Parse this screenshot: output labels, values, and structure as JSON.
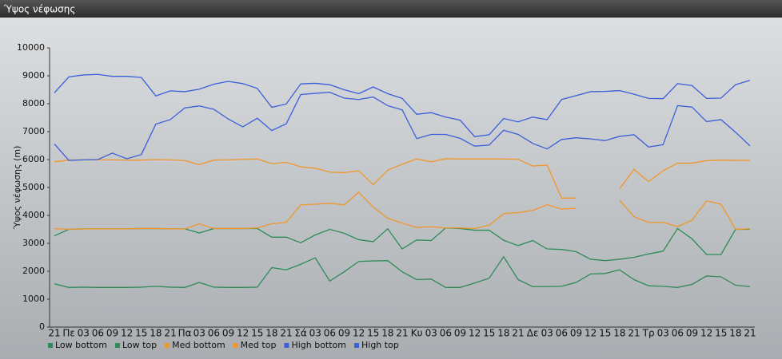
{
  "chart_data": {
    "type": "line",
    "title": "Ύψος νέφωσης",
    "y_label": "Ύψος νέφωσης (m)",
    "categories": [
      "21",
      "Πε",
      "03",
      "06",
      "09",
      "12",
      "15",
      "18",
      "21",
      "Πα",
      "03",
      "06",
      "09",
      "12",
      "15",
      "18",
      "21",
      "Σά",
      "03",
      "06",
      "09",
      "12",
      "15",
      "18",
      "21",
      "Κυ",
      "03",
      "06",
      "09",
      "12",
      "15",
      "18",
      "21",
      "Δε",
      "03",
      "06",
      "09",
      "12",
      "15",
      "18",
      "21",
      "Τρ",
      "03",
      "06",
      "09",
      "12",
      "15",
      "18",
      "21"
    ],
    "ylim": [
      0,
      10000
    ],
    "yticks": [
      0,
      1000,
      2000,
      3000,
      4000,
      5000,
      6000,
      7000,
      8000,
      9000,
      10000
    ],
    "grid": false,
    "series": [
      {
        "name": "Low bottom",
        "color": "#2e8b57",
        "values": [
          1550,
          1420,
          1430,
          1420,
          1420,
          1420,
          1430,
          1460,
          1430,
          1420,
          1600,
          1430,
          1420,
          1420,
          1430,
          2130,
          2050,
          2250,
          2480,
          1650,
          1980,
          2350,
          2370,
          2380,
          1980,
          1700,
          1720,
          1420,
          1420,
          1580,
          1750,
          2520,
          1700,
          1450,
          1450,
          1460,
          1600,
          1900,
          1920,
          2050,
          1700,
          1480,
          1460,
          1420,
          1530,
          1830,
          1800,
          1500,
          1450
        ]
      },
      {
        "name": "Low top",
        "color": "#2e8b57",
        "values": [
          3270,
          3500,
          3520,
          3520,
          3520,
          3520,
          3530,
          3530,
          3520,
          3520,
          3370,
          3530,
          3530,
          3530,
          3530,
          3220,
          3220,
          3020,
          3300,
          3500,
          3360,
          3130,
          3060,
          3520,
          2800,
          3120,
          3100,
          3550,
          3530,
          3470,
          3470,
          3110,
          2920,
          3100,
          2800,
          2780,
          2700,
          2430,
          2380,
          2430,
          2500,
          2620,
          2720,
          3530,
          3160,
          2600,
          2600,
          3500,
          3500
        ]
      },
      {
        "name": "Med bottom",
        "color": "#f0962a",
        "values": [
          3530,
          3500,
          3520,
          3520,
          3520,
          3520,
          3530,
          3530,
          3520,
          3520,
          3700,
          3530,
          3530,
          3530,
          3550,
          3700,
          3750,
          4380,
          4400,
          4430,
          4380,
          4830,
          4300,
          3900,
          3720,
          3570,
          3600,
          3550,
          3550,
          3530,
          3650,
          4060,
          4100,
          4180,
          4380,
          4230,
          4250,
          null,
          null,
          4550,
          3950,
          3750,
          3750,
          3600,
          3830,
          4520,
          4400,
          3500,
          3520
        ]
      },
      {
        "name": "Med top",
        "color": "#f0962a",
        "values": [
          5920,
          5980,
          5990,
          5990,
          5990,
          5980,
          5980,
          6000,
          5990,
          5960,
          5820,
          5980,
          5990,
          6010,
          6020,
          5850,
          5900,
          5740,
          5690,
          5550,
          5530,
          5600,
          5100,
          5620,
          5830,
          6020,
          5920,
          6030,
          6020,
          6020,
          6020,
          6020,
          6010,
          5770,
          5800,
          4620,
          4620,
          null,
          null,
          4950,
          5650,
          5210,
          5600,
          5870,
          5870,
          5960,
          5980,
          5970,
          5970
        ]
      },
      {
        "name": "High bottom",
        "color": "#3a5fd9",
        "values": [
          6560,
          5970,
          5990,
          6000,
          6230,
          6030,
          6180,
          7270,
          7430,
          7850,
          7920,
          7800,
          7450,
          7170,
          7480,
          7040,
          7280,
          8330,
          8370,
          8410,
          8200,
          8150,
          8240,
          7930,
          7780,
          6750,
          6900,
          6900,
          6760,
          6480,
          6520,
          7050,
          6900,
          6580,
          6380,
          6720,
          6780,
          6740,
          6680,
          6830,
          6890,
          6450,
          6530,
          7930,
          7880,
          7360,
          7430,
          6980,
          6490
        ]
      },
      {
        "name": "High top",
        "color": "#3a5fd9",
        "values": [
          8390,
          8960,
          9030,
          9050,
          8980,
          8980,
          8940,
          8280,
          8460,
          8430,
          8520,
          8700,
          8800,
          8720,
          8550,
          7870,
          7990,
          8710,
          8730,
          8680,
          8500,
          8360,
          8600,
          8360,
          8190,
          7620,
          7680,
          7520,
          7410,
          6820,
          6890,
          7470,
          7350,
          7520,
          7430,
          8150,
          8290,
          8430,
          8440,
          8470,
          8340,
          8190,
          8180,
          8720,
          8650,
          8190,
          8200,
          8680,
          8840
        ]
      }
    ]
  }
}
